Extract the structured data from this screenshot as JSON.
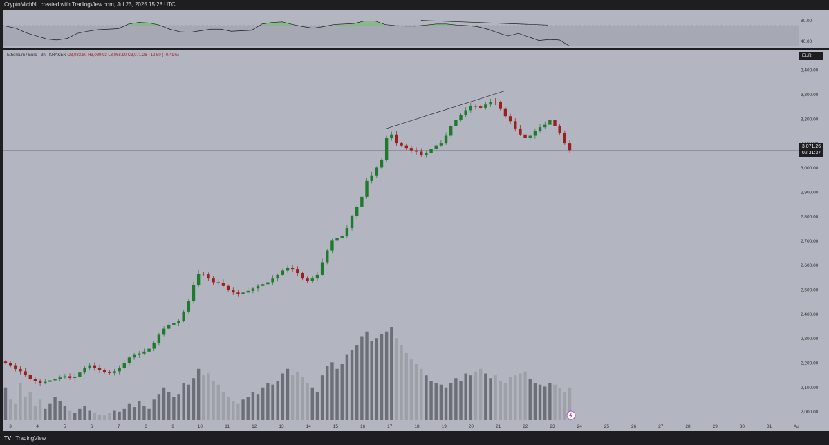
{
  "header": {
    "caption": "CryptoMichNL created with TradingView.com, Jul 23, 2025 15:28 UTC"
  },
  "footer": {
    "brand": "TradingView",
    "logo_glyph": "TV"
  },
  "legend": {
    "symbol": "Ethereum / Euro · 3h · KRAKEN",
    "ohlc": "O3,083.80  H3,089.93  L3,068.90  C3,071.26  −12.50 (−0.41%)"
  },
  "price_axis": {
    "currency": "EUR",
    "last_price": "3,071.26",
    "countdown": "02:31:37"
  },
  "colors": {
    "background": "#b3b6c1",
    "up": "#1f7a2e",
    "down": "#9a1f1f",
    "rsi_overbought": "#7fb87f"
  },
  "chart_data": [
    {
      "type": "line",
      "panel": "rsi",
      "ylim": [
        27,
        101
      ],
      "y_ticks": [
        "80.00",
        "40.00"
      ],
      "band": [
        30,
        70
      ],
      "x_index": [
        0,
        4,
        8,
        12,
        16,
        20,
        24,
        28,
        32,
        36,
        40,
        44,
        48,
        52,
        56,
        60,
        64,
        68,
        72,
        76,
        80,
        84,
        88,
        92,
        96,
        100,
        104,
        108,
        112,
        116,
        120,
        124,
        128,
        132,
        136,
        140,
        144,
        148,
        152,
        156,
        160,
        164,
        168,
        172,
        176,
        180,
        184,
        188,
        192,
        196,
        200,
        204,
        208,
        212,
        216,
        220
      ],
      "values": [
        69,
        65,
        56,
        50,
        44,
        42,
        45,
        55,
        59,
        62,
        63,
        64,
        73,
        76,
        75,
        71,
        63,
        58,
        57,
        60,
        63,
        63,
        59,
        60,
        61,
        73,
        76,
        77,
        72,
        68,
        65,
        68,
        72,
        73,
        74,
        79,
        79,
        72,
        70,
        69,
        69,
        71,
        73,
        73,
        71,
        70,
        68,
        63,
        56,
        50,
        55,
        48,
        41,
        43,
        42,
        30
      ],
      "trendline": {
        "from": {
          "x": 162,
          "y": 80
        },
        "to": {
          "x": 206,
          "y": 71
        }
      }
    },
    {
      "type": "candlestick",
      "panel": "price",
      "ylim": [
        1985,
        3440
      ],
      "y_ticks": [
        "3,400.00",
        "3,300.00",
        "3,200.00",
        "3,100.00",
        "3,000.00",
        "2,900.00",
        "2,800.00",
        "2,700.00",
        "2,600.00",
        "2,500.00",
        "2,400.00",
        "2,300.00",
        "2,200.00",
        "2,100.00",
        "2,000.00"
      ],
      "x_ticks": [
        "3",
        "4",
        "5",
        "6",
        "7",
        "8",
        "9",
        "10",
        "11",
        "12",
        "13",
        "14",
        "15",
        "16",
        "17",
        "18",
        "19",
        "20",
        "21",
        "22",
        "23",
        "24",
        "25",
        "26",
        "27",
        "28",
        "29",
        "30",
        "31",
        "Au"
      ],
      "last_price": 3071.26,
      "close": [
        2200,
        2190,
        2175,
        2165,
        2150,
        2135,
        2125,
        2118,
        2122,
        2128,
        2135,
        2140,
        2145,
        2138,
        2142,
        2160,
        2180,
        2190,
        2178,
        2170,
        2162,
        2158,
        2165,
        2178,
        2198,
        2222,
        2232,
        2238,
        2246,
        2258,
        2282,
        2315,
        2340,
        2356,
        2362,
        2372,
        2410,
        2452,
        2520,
        2565,
        2562,
        2545,
        2530,
        2528,
        2515,
        2500,
        2488,
        2482,
        2488,
        2495,
        2505,
        2515,
        2522,
        2530,
        2545,
        2560,
        2578,
        2588,
        2582,
        2568,
        2545,
        2536,
        2545,
        2560,
        2612,
        2660,
        2700,
        2712,
        2720,
        2752,
        2800,
        2840,
        2880,
        2945,
        2968,
        3000,
        3030,
        3120,
        3135,
        3100,
        3090,
        3080,
        3070,
        3065,
        3050,
        3060,
        3075,
        3090,
        3100,
        3130,
        3170,
        3195,
        3215,
        3235,
        3252,
        3250,
        3245,
        3258,
        3270,
        3268,
        3240,
        3210,
        3190,
        3160,
        3135,
        3120,
        3130,
        3150,
        3165,
        3175,
        3195,
        3170,
        3140,
        3100,
        3071
      ],
      "volume_approx": [
        35,
        22,
        18,
        40,
        25,
        30,
        15,
        22,
        12,
        18,
        25,
        20,
        15,
        10,
        8,
        12,
        15,
        10,
        8,
        6,
        5,
        8,
        10,
        9,
        12,
        18,
        14,
        20,
        15,
        12,
        22,
        28,
        35,
        30,
        25,
        28,
        40,
        38,
        45,
        55,
        48,
        50,
        42,
        38,
        30,
        25,
        20,
        18,
        22,
        25,
        30,
        28,
        35,
        40,
        38,
        42,
        50,
        55,
        48,
        52,
        46,
        40,
        35,
        30,
        48,
        58,
        62,
        55,
        60,
        70,
        75,
        80,
        90,
        95,
        85,
        88,
        92,
        95,
        100,
        88,
        80,
        72,
        65,
        60,
        55,
        48,
        42,
        40,
        38,
        35,
        40,
        45,
        42,
        50,
        48,
        52,
        55,
        50,
        45,
        48,
        42,
        40,
        46,
        48,
        50,
        52,
        44,
        40,
        38,
        36,
        40,
        38,
        34,
        30,
        35
      ],
      "volume_scale": "relative"
    }
  ]
}
